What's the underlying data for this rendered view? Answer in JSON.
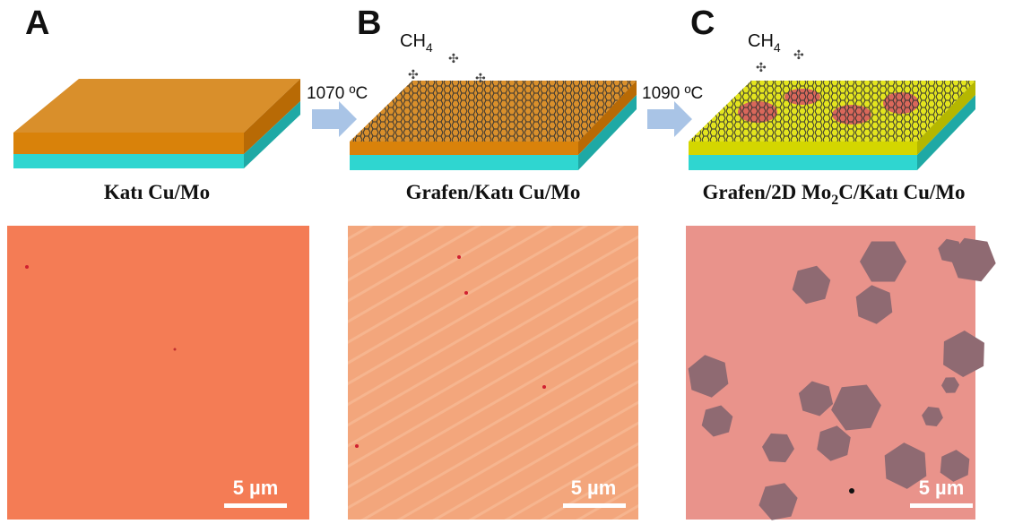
{
  "panels": [
    {
      "letter": "A",
      "caption_parts": [
        "Katı Cu/Mo"
      ],
      "scale_bar": "5 µm"
    },
    {
      "letter": "B",
      "caption_parts": [
        "Grafen/Katı Cu/Mo"
      ],
      "scale_bar": "5 µm"
    },
    {
      "letter": "C",
      "caption_parts": [
        "Grafen/2D ",
        "Mo",
        "2",
        "C",
        "/Katı Cu/Mo"
      ],
      "scale_bar": "5 µm"
    }
  ],
  "gas_labels": [
    {
      "main": "CH",
      "sub": "4"
    },
    {
      "main": "CH",
      "sub": "4"
    }
  ],
  "arrows": [
    {
      "label": "1070 ºC"
    },
    {
      "label": "1090 ºC"
    }
  ]
}
